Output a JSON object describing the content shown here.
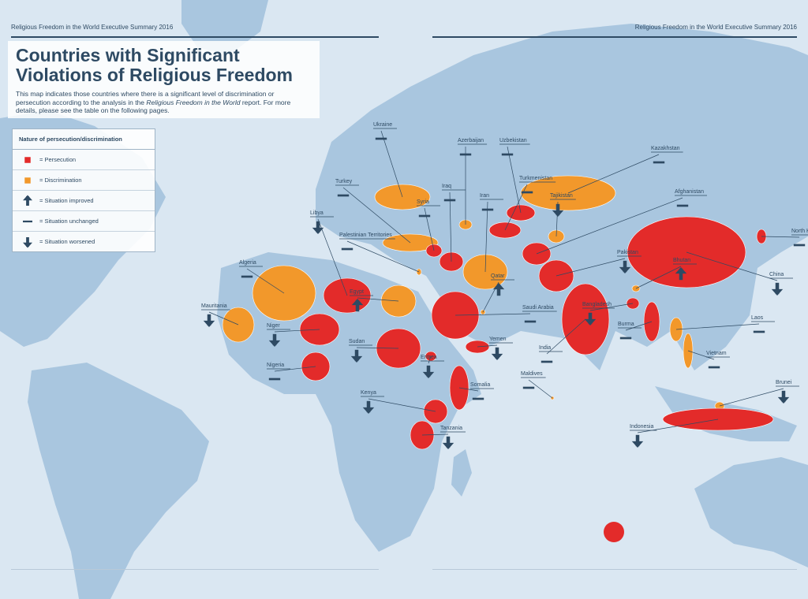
{
  "header": {
    "left": "Religious Freedom in the World Executive Summary 2016",
    "right": "Religious Freedom in the World Executive Summary 2016"
  },
  "title_lines": [
    "Countries with Significant",
    "Violations of Religious Freedom"
  ],
  "description": {
    "before": "This map indicates those countries where there is a significant level of discrimination or persecution according to the analysis in the ",
    "italic": "Religious Freedom in the World",
    "after": " report. For more details, please see the table on the following pages."
  },
  "legend": {
    "title": "Nature of persecution/discrimination",
    "items": [
      {
        "key": "persecution",
        "label": "= Persecution",
        "color": "#e32b2a"
      },
      {
        "key": "discrimination",
        "label": "= Discrimination",
        "color": "#f2982b"
      },
      {
        "key": "improved",
        "label": "= Situation improved"
      },
      {
        "key": "unchanged",
        "label": "= Situation unchanged"
      },
      {
        "key": "worsened",
        "label": "= Situation worsened"
      }
    ]
  },
  "countries": [
    {
      "name": "Ukraine",
      "status": "discrimination",
      "trend": "unchanged"
    },
    {
      "name": "Azerbaijan",
      "status": "discrimination",
      "trend": "unchanged"
    },
    {
      "name": "Uzbekistan",
      "status": "persecution",
      "trend": "unchanged"
    },
    {
      "name": "Kazakhstan",
      "status": "discrimination",
      "trend": "unchanged"
    },
    {
      "name": "Turkey",
      "status": "discrimination",
      "trend": "unchanged"
    },
    {
      "name": "Iraq",
      "status": "persecution",
      "trend": "unchanged"
    },
    {
      "name": "Turkmenistan",
      "status": "persecution",
      "trend": "unchanged"
    },
    {
      "name": "Tajikistan",
      "status": "discrimination",
      "trend": "worsened"
    },
    {
      "name": "Syria",
      "status": "persecution",
      "trend": "unchanged"
    },
    {
      "name": "Iran",
      "status": "discrimination",
      "trend": "unchanged"
    },
    {
      "name": "Afghanistan",
      "status": "persecution",
      "trend": "unchanged"
    },
    {
      "name": "Libya",
      "status": "persecution",
      "trend": "worsened"
    },
    {
      "name": "Palestinian Territories",
      "status": "discrimination",
      "trend": "unchanged"
    },
    {
      "name": "Algeria",
      "status": "discrimination",
      "trend": "unchanged"
    },
    {
      "name": "Egypt",
      "status": "discrimination",
      "trend": "improved"
    },
    {
      "name": "Pakistan",
      "status": "persecution",
      "trend": "worsened"
    },
    {
      "name": "Bhutan",
      "status": "discrimination",
      "trend": "improved"
    },
    {
      "name": "Qatar",
      "status": "discrimination",
      "trend": "improved"
    },
    {
      "name": "North Korea",
      "status": "persecution",
      "trend": "unchanged"
    },
    {
      "name": "China",
      "status": "persecution",
      "trend": "worsened"
    },
    {
      "name": "Mauritania",
      "status": "discrimination",
      "trend": "worsened"
    },
    {
      "name": "Niger",
      "status": "persecution",
      "trend": "worsened"
    },
    {
      "name": "Saudi Arabia",
      "status": "persecution",
      "trend": "unchanged"
    },
    {
      "name": "Bangladesh",
      "status": "persecution",
      "trend": "worsened"
    },
    {
      "name": "Laos",
      "status": "discrimination",
      "trend": "unchanged"
    },
    {
      "name": "Burma",
      "status": "persecution",
      "trend": "unchanged"
    },
    {
      "name": "Sudan",
      "status": "persecution",
      "trend": "worsened"
    },
    {
      "name": "Yemen",
      "status": "persecution",
      "trend": "worsened"
    },
    {
      "name": "India",
      "status": "persecution",
      "trend": "unchanged"
    },
    {
      "name": "Vietnam",
      "status": "discrimination",
      "trend": "unchanged"
    },
    {
      "name": "Nigeria",
      "status": "persecution",
      "trend": "unchanged"
    },
    {
      "name": "Eritrea",
      "status": "persecution",
      "trend": "worsened"
    },
    {
      "name": "Maldives",
      "status": "discrimination",
      "trend": "unchanged"
    },
    {
      "name": "Brunei",
      "status": "discrimination",
      "trend": "worsened"
    },
    {
      "name": "Kenya",
      "status": "persecution",
      "trend": "worsened"
    },
    {
      "name": "Somalia",
      "status": "persecution",
      "trend": "unchanged"
    },
    {
      "name": "Tanzania",
      "status": "persecution",
      "trend": "worsened"
    },
    {
      "name": "Indonesia",
      "status": "persecution",
      "trend": "worsened"
    }
  ]
}
